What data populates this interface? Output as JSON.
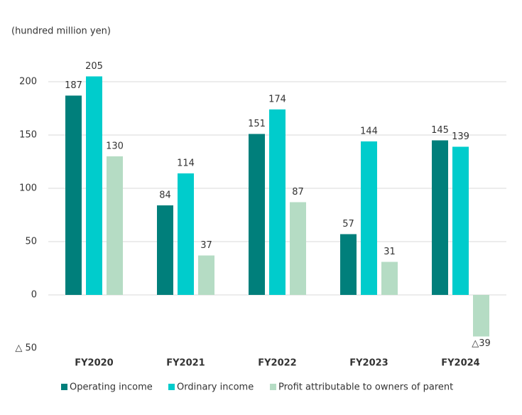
{
  "chart_data": {
    "type": "bar",
    "y_label": "(hundred million yen)",
    "categories": [
      "FY2020",
      "FY2021",
      "FY2022",
      "FY2023",
      "FY2024"
    ],
    "series": [
      {
        "name": "Operating income",
        "color": "#007f7b",
        "values": [
          187,
          84,
          151,
          57,
          145
        ]
      },
      {
        "name": "Ordinary income",
        "color": "#00cccc",
        "values": [
          205,
          114,
          174,
          144,
          139
        ]
      },
      {
        "name": "Profit attributable to owners of parent",
        "color": "#b5dcc4",
        "values": [
          130,
          37,
          87,
          31,
          -39
        ],
        "value_labels": [
          "130",
          "37",
          "87",
          "31",
          "△39"
        ]
      }
    ],
    "ylim": [
      -50,
      215
    ],
    "yticks": [
      {
        "value": -50,
        "label": "△ 50"
      },
      0,
      50,
      100,
      150,
      200
    ],
    "grid": true
  }
}
